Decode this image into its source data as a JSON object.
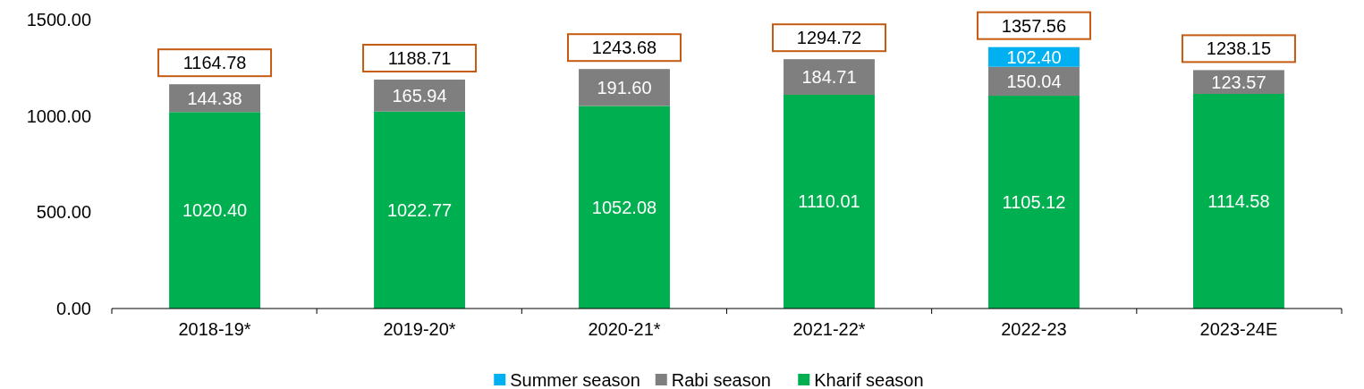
{
  "chart_data": {
    "type": "bar",
    "stacked": true,
    "categories": [
      "2018-19*",
      "2019-20*",
      "2020-21*",
      "2021-22*",
      "2022-23",
      "2023-24E"
    ],
    "series": [
      {
        "name": "Kharif season",
        "color": "#00b050",
        "values": [
          1020.4,
          1022.77,
          1052.08,
          1110.01,
          1105.12,
          1114.58
        ],
        "value_labels": [
          "1020.40",
          "1022.77",
          "1052.08",
          "1110.01",
          "1105.12",
          "1114.58"
        ]
      },
      {
        "name": "Rabi season",
        "color": "#7f7f7f",
        "values": [
          144.38,
          165.94,
          191.6,
          184.71,
          150.04,
          123.57
        ],
        "value_labels": [
          "144.38",
          "165.94",
          "191.60",
          "184.71",
          "150.04",
          "123.57"
        ]
      },
      {
        "name": "Summer season",
        "color": "#00b0f0",
        "values": [
          null,
          null,
          null,
          null,
          102.4,
          null
        ],
        "value_labels": [
          null,
          null,
          null,
          null,
          "102.40",
          null
        ]
      }
    ],
    "ylim": [
      0,
      1500
    ],
    "yticks": [
      {
        "value": 0,
        "label": "0.00"
      },
      {
        "value": 500,
        "label": "500.00"
      },
      {
        "value": 1000,
        "label": "1000.00"
      },
      {
        "value": 1500,
        "label": "1500.00"
      }
    ],
    "totals": [
      "1164.78",
      "1188.71",
      "1243.68",
      "1294.72",
      "1357.56",
      "1238.15"
    ],
    "legend": "bottom",
    "grid": false
  }
}
